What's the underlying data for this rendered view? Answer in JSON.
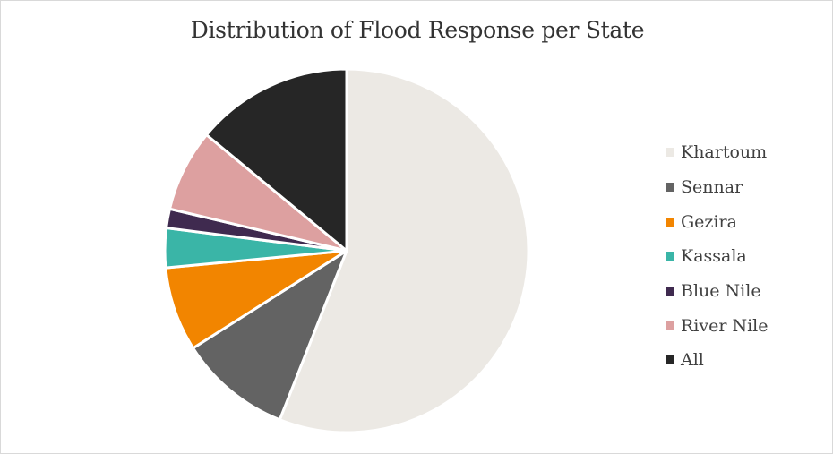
{
  "chart_data": {
    "type": "pie",
    "title": "Distribution of Flood Response per State",
    "legend_position": "right",
    "slices": [
      {
        "label": "Khartoum",
        "value": 56.0,
        "color": "#ECE9E4"
      },
      {
        "label": "Sennar",
        "value": 10.0,
        "color": "#636363"
      },
      {
        "label": "Gezira",
        "value": 7.5,
        "color": "#F28500"
      },
      {
        "label": "Kassala",
        "value": 3.5,
        "color": "#3AB5A7"
      },
      {
        "label": "Blue Nile",
        "value": 1.7,
        "color": "#3F2A4F"
      },
      {
        "label": "River Nile",
        "value": 7.3,
        "color": "#DDA0A0"
      },
      {
        "label": "All",
        "value": 14.0,
        "color": "#262626"
      }
    ]
  }
}
